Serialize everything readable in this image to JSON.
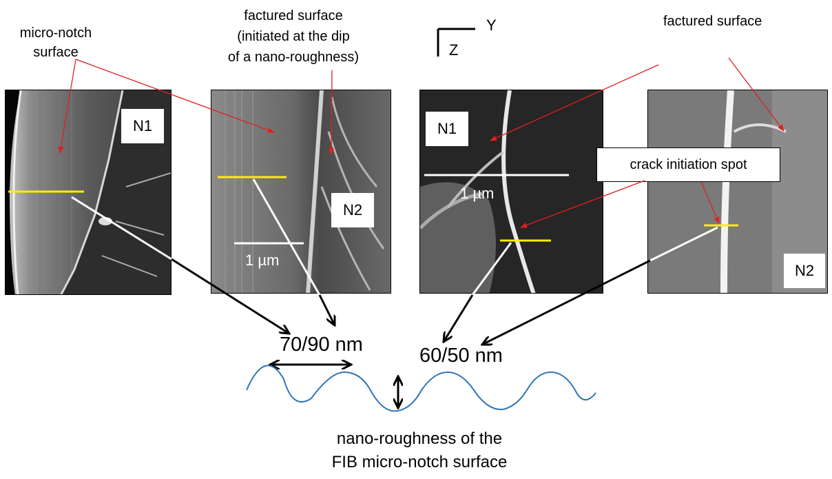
{
  "annotations": {
    "micro_notch_surface": [
      "micro-notch",
      "surface"
    ],
    "fractured_surface_left": [
      "factured surface",
      "(initiated at the dip",
      "of a nano-roughness)"
    ],
    "fractured_surface_right": "factured surface",
    "crack_initiation_spot": "crack initiation spot",
    "measurement_left": "70/90 nm",
    "measurement_right": "60/50 nm",
    "caption": [
      "nano-roughness of the",
      "FIB micro-notch surface"
    ]
  },
  "axes": {
    "y": "Y",
    "z": "Z"
  },
  "panels": [
    {
      "label": "N1",
      "scale_bar": ""
    },
    {
      "label": "N2",
      "scale_bar": "1 µm"
    },
    {
      "label": "N1",
      "scale_bar": "1 µm"
    },
    {
      "label": "N2",
      "scale_bar": ""
    }
  ],
  "colors": {
    "pointer_arrow": "#e0201e",
    "measure_line": "#ffee00",
    "wave": "#2e75b6",
    "arrow": "#000000"
  }
}
